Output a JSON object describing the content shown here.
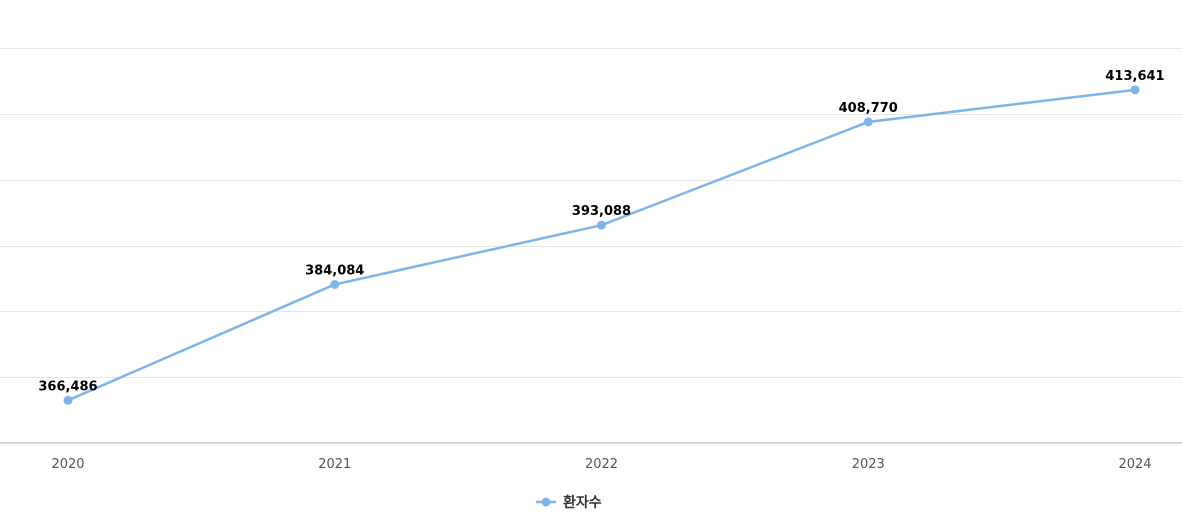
{
  "chart_data": {
    "type": "line",
    "categories": [
      "2020",
      "2021",
      "2022",
      "2023",
      "2024"
    ],
    "series": [
      {
        "name": "환자수",
        "values": [
          366486,
          384084,
          393088,
          408770,
          413641
        ],
        "labels": [
          "366,486",
          "384,084",
          "393,088",
          "408,770",
          "413,641"
        ],
        "color": "#7cb5ec"
      }
    ],
    "ylim": [
      360000,
      420000
    ],
    "y_gridlines": [
      360000,
      370000,
      380000,
      390000,
      400000,
      410000,
      420000
    ],
    "y_tick_labels_visible": false,
    "grid": true,
    "legend": "bottom-center"
  }
}
